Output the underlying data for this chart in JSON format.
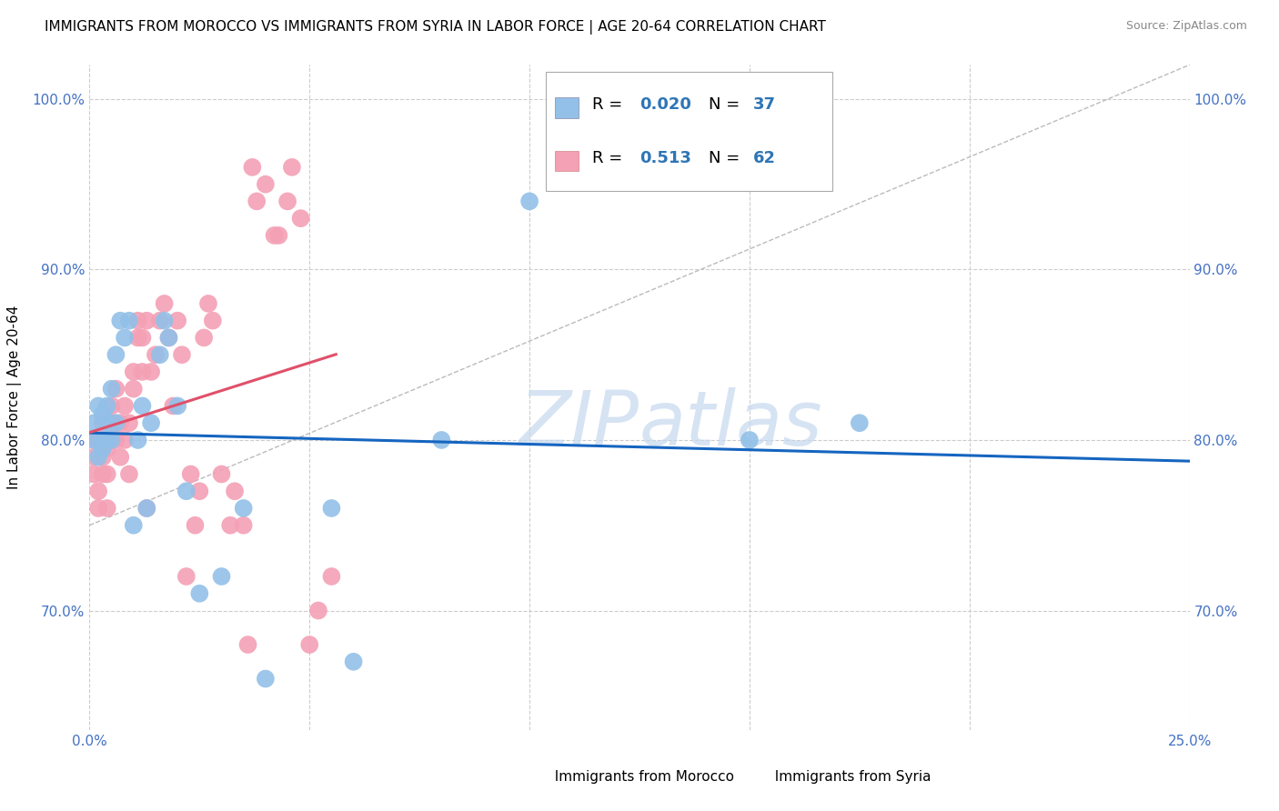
{
  "title": "IMMIGRANTS FROM MOROCCO VS IMMIGRANTS FROM SYRIA IN LABOR FORCE | AGE 20-64 CORRELATION CHART",
  "source": "Source: ZipAtlas.com",
  "ylabel": "In Labor Force | Age 20-64",
  "xlim": [
    0.0,
    0.25
  ],
  "ylim": [
    0.63,
    1.02
  ],
  "xticks": [
    0.0,
    0.05,
    0.1,
    0.15,
    0.2,
    0.25
  ],
  "xticklabels": [
    "0.0%",
    "",
    "",
    "",
    "",
    "25.0%"
  ],
  "yticks": [
    0.7,
    0.8,
    0.9,
    1.0
  ],
  "yticklabels": [
    "70.0%",
    "80.0%",
    "90.0%",
    "100.0%"
  ],
  "morocco_color": "#92C0E8",
  "syria_color": "#F4A0B5",
  "morocco_R": 0.02,
  "morocco_N": 37,
  "syria_R": 0.513,
  "syria_N": 62,
  "blue_color": "#2E75B6",
  "trend_morocco_color": "#1565C0",
  "trend_syria_color": "#E0506A",
  "watermark_color": "#C5D8EE",
  "grid_color": "#CCCCCC",
  "title_fontsize": 11,
  "axis_label_fontsize": 11,
  "tick_label_color": "#4472C4",
  "tick_fontsize": 11,
  "morocco_x": [
    0.001,
    0.001,
    0.002,
    0.002,
    0.003,
    0.003,
    0.003,
    0.004,
    0.004,
    0.004,
    0.005,
    0.005,
    0.006,
    0.006,
    0.007,
    0.008,
    0.009,
    0.01,
    0.011,
    0.012,
    0.013,
    0.014,
    0.016,
    0.017,
    0.018,
    0.02,
    0.022,
    0.025,
    0.03,
    0.035,
    0.04,
    0.055,
    0.06,
    0.08,
    0.1,
    0.15,
    0.175
  ],
  "morocco_y": [
    0.8,
    0.81,
    0.79,
    0.82,
    0.8,
    0.815,
    0.795,
    0.82,
    0.8,
    0.81,
    0.83,
    0.8,
    0.85,
    0.81,
    0.87,
    0.86,
    0.87,
    0.75,
    0.8,
    0.82,
    0.76,
    0.81,
    0.85,
    0.87,
    0.86,
    0.82,
    0.77,
    0.71,
    0.72,
    0.76,
    0.66,
    0.76,
    0.67,
    0.8,
    0.94,
    0.8,
    0.81
  ],
  "syria_x": [
    0.001,
    0.001,
    0.001,
    0.002,
    0.002,
    0.002,
    0.003,
    0.003,
    0.003,
    0.004,
    0.004,
    0.004,
    0.005,
    0.005,
    0.005,
    0.006,
    0.006,
    0.007,
    0.007,
    0.008,
    0.008,
    0.009,
    0.009,
    0.01,
    0.01,
    0.011,
    0.011,
    0.012,
    0.012,
    0.013,
    0.013,
    0.014,
    0.015,
    0.016,
    0.017,
    0.018,
    0.019,
    0.02,
    0.021,
    0.022,
    0.023,
    0.024,
    0.025,
    0.026,
    0.027,
    0.028,
    0.03,
    0.032,
    0.033,
    0.035,
    0.036,
    0.037,
    0.038,
    0.04,
    0.042,
    0.043,
    0.045,
    0.046,
    0.048,
    0.05,
    0.052,
    0.055
  ],
  "syria_y": [
    0.78,
    0.79,
    0.8,
    0.76,
    0.77,
    0.8,
    0.78,
    0.79,
    0.81,
    0.78,
    0.795,
    0.76,
    0.8,
    0.82,
    0.81,
    0.83,
    0.8,
    0.81,
    0.79,
    0.82,
    0.8,
    0.78,
    0.81,
    0.84,
    0.83,
    0.86,
    0.87,
    0.86,
    0.84,
    0.87,
    0.76,
    0.84,
    0.85,
    0.87,
    0.88,
    0.86,
    0.82,
    0.87,
    0.85,
    0.72,
    0.78,
    0.75,
    0.77,
    0.86,
    0.88,
    0.87,
    0.78,
    0.75,
    0.77,
    0.75,
    0.68,
    0.96,
    0.94,
    0.95,
    0.92,
    0.92,
    0.94,
    0.96,
    0.93,
    0.68,
    0.7,
    0.72
  ]
}
